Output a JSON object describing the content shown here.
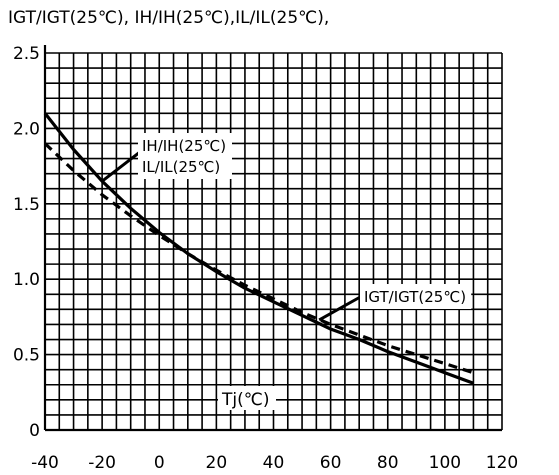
{
  "chart_data": {
    "type": "line",
    "title": "",
    "ylabel": "IGT/IGT(25℃), IH/IH(25℃),IL/IL(25℃),",
    "xlabel": "Tj(℃)",
    "xlim": [
      -40,
      120
    ],
    "ylim": [
      0,
      2.5
    ],
    "x_ticks": [
      "-40",
      "-20",
      "0",
      "20",
      "40",
      "60",
      "80",
      "100",
      "120"
    ],
    "y_ticks": [
      "0",
      "0.5",
      "1.0",
      "1.5",
      "2.0",
      "2.5"
    ],
    "grid": true,
    "series": [
      {
        "name": "IH/IH(25℃)\nIL/IL(25℃)",
        "label_lines": [
          "IH/IH(25℃)",
          "IL/IL(25℃)"
        ],
        "style": "solid",
        "x": [
          -40,
          -30,
          -20,
          -10,
          0,
          10,
          20,
          30,
          40,
          50,
          60,
          70,
          80,
          90,
          100,
          110
        ],
        "y": [
          2.1,
          1.86,
          1.65,
          1.47,
          1.31,
          1.17,
          1.05,
          0.94,
          0.85,
          0.76,
          0.67,
          0.6,
          0.52,
          0.45,
          0.38,
          0.31
        ]
      },
      {
        "name": "IGT/IGT(25℃)",
        "label_lines": [
          "IGT/IGT(25℃)"
        ],
        "style": "dashed",
        "x": [
          -40,
          -30,
          -20,
          -10,
          0,
          10,
          20,
          30,
          40,
          50,
          60,
          70,
          80,
          90,
          100,
          110
        ],
        "y": [
          1.9,
          1.72,
          1.56,
          1.42,
          1.29,
          1.17,
          1.06,
          0.96,
          0.87,
          0.78,
          0.7,
          0.63,
          0.56,
          0.5,
          0.44,
          0.38
        ]
      }
    ]
  }
}
